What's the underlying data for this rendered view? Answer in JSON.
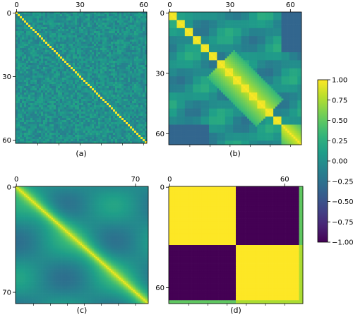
{
  "chart_data": [
    {
      "type": "heatmap",
      "caption": "(a)",
      "size": 62,
      "pattern": "diagonal",
      "x_ticks": [
        {
          "value": 0,
          "label": "0"
        },
        {
          "value": 30,
          "label": "30"
        },
        {
          "value": 60,
          "label": "60"
        }
      ],
      "y_ticks": [
        {
          "value": 0,
          "label": "0"
        },
        {
          "value": 30,
          "label": "30"
        },
        {
          "value": 60,
          "label": "60"
        }
      ],
      "tick_labels_position": "top-left",
      "diagonal_value": 1.0,
      "off_diagonal_range": [
        -0.15,
        0.2
      ]
    },
    {
      "type": "heatmap",
      "caption": "(b)",
      "size": 66,
      "pattern": "block-diagonal",
      "x_ticks": [
        {
          "value": 0,
          "label": "0"
        },
        {
          "value": 30,
          "label": "30"
        },
        {
          "value": 60,
          "label": "60"
        }
      ],
      "y_ticks": [
        {
          "value": 0,
          "label": "0"
        },
        {
          "value": 30,
          "label": "30"
        },
        {
          "value": 60,
          "label": "60"
        }
      ],
      "tick_labels_position": "top-left",
      "diagonal_value": 1.0,
      "off_diagonal_range": [
        -0.4,
        0.6
      ]
    },
    {
      "type": "heatmap",
      "caption": "(c)",
      "size": 78,
      "pattern": "smooth-diagonal",
      "x_ticks": [
        {
          "value": 0,
          "label": "0"
        },
        {
          "value": 70,
          "label": "70"
        }
      ],
      "y_ticks": [
        {
          "value": 0,
          "label": "0"
        },
        {
          "value": 70,
          "label": "70"
        }
      ],
      "tick_labels_position": "top-left",
      "diagonal_value": 1.0,
      "off_diagonal_range": [
        -0.35,
        0.2
      ]
    },
    {
      "type": "heatmap",
      "caption": "(d)",
      "size": 70,
      "pattern": "two-block",
      "x_ticks": [
        {
          "value": 0,
          "label": "0"
        },
        {
          "value": 60,
          "label": "60"
        }
      ],
      "y_ticks": [
        {
          "value": 0,
          "label": "0"
        },
        {
          "value": 60,
          "label": "60"
        }
      ],
      "tick_labels_position": "top-left",
      "block_split": 35,
      "in_block_value": 1.0,
      "cross_block_value": -1.0
    }
  ],
  "colorbar": {
    "colormap": "viridis",
    "min": -1.0,
    "max": 1.0,
    "ticks": [
      {
        "value": 1.0,
        "label": "1.00"
      },
      {
        "value": 0.75,
        "label": "0.75"
      },
      {
        "value": 0.5,
        "label": "0.50"
      },
      {
        "value": 0.25,
        "label": "0.25"
      },
      {
        "value": 0.0,
        "label": "0.00"
      },
      {
        "value": -0.25,
        "label": "−0.25"
      },
      {
        "value": -0.5,
        "label": "−0.50"
      },
      {
        "value": -0.75,
        "label": "−0.75"
      },
      {
        "value": -1.0,
        "label": "−1.00"
      }
    ]
  }
}
